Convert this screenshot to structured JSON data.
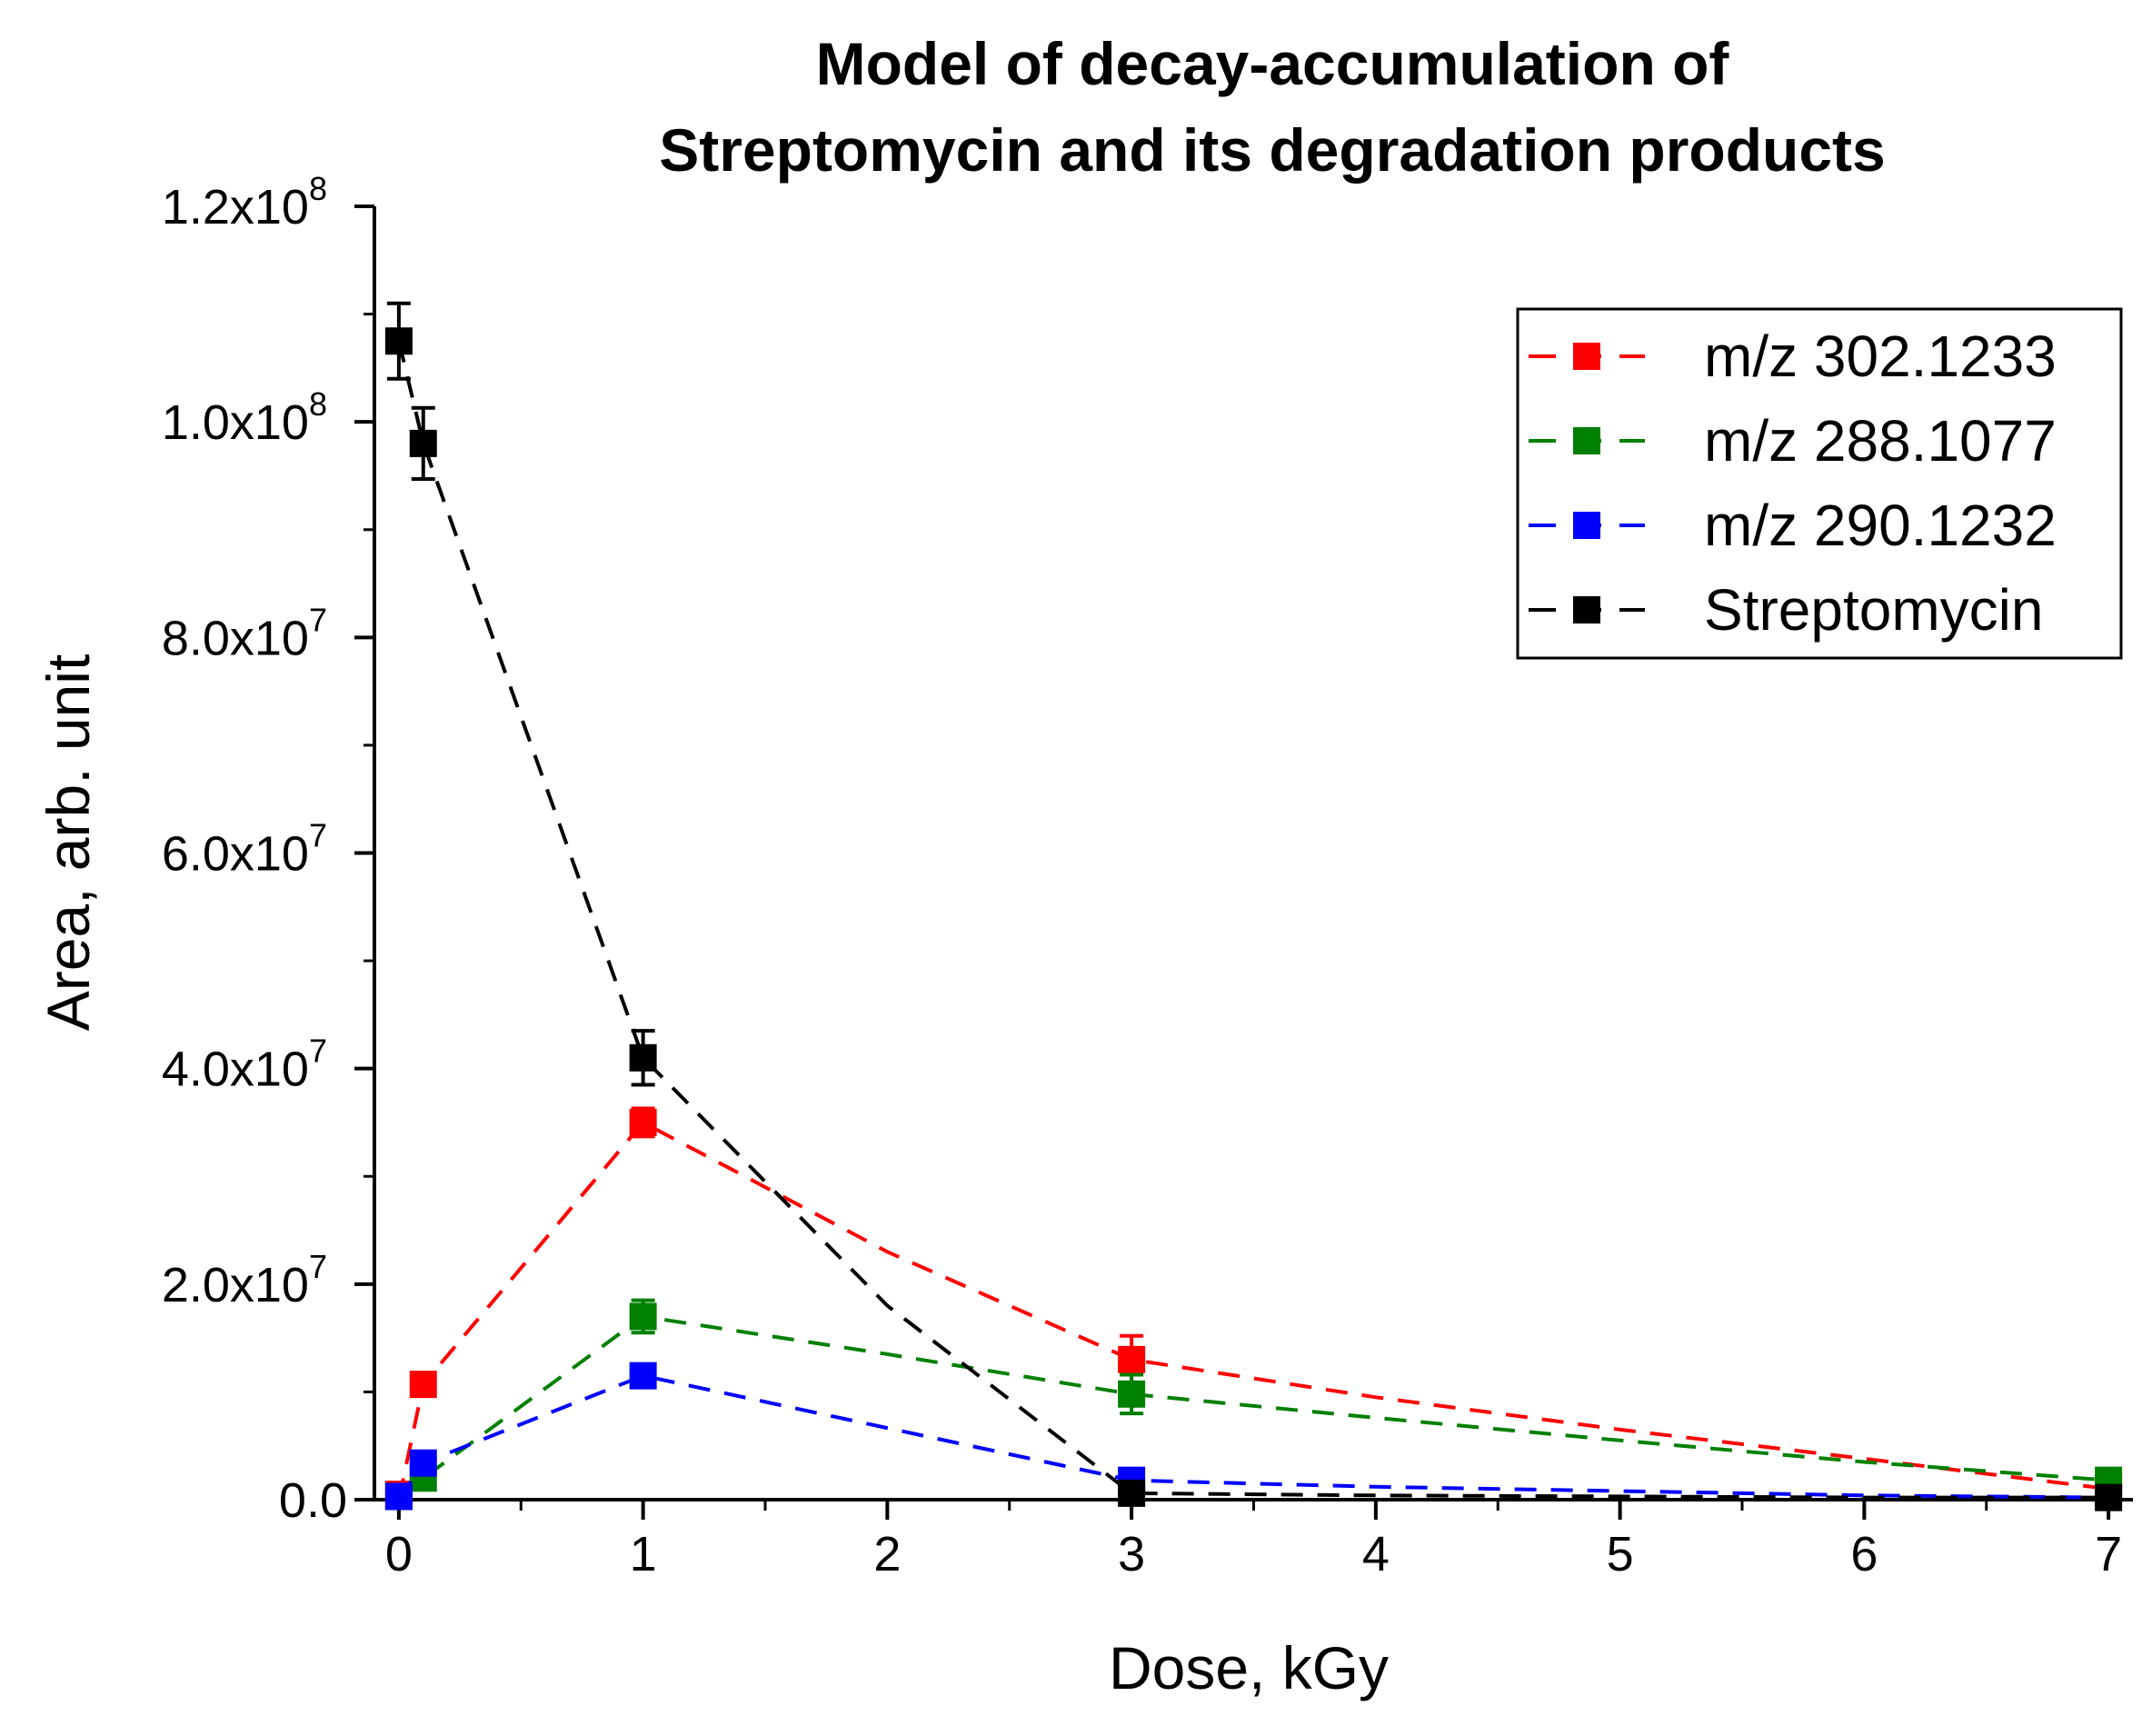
{
  "chart_data": {
    "type": "line",
    "title": [
      "Model of decay-accumulation of",
      "Streptomycin and its degradation products"
    ],
    "xlabel": "Dose, kGy",
    "ylabel": "Area, arb. unit",
    "xlim": [
      -0.1,
      7.1
    ],
    "ylim": [
      0,
      120000000
    ],
    "x_ticks": [
      {
        "value": 0,
        "label": "0"
      },
      {
        "value": 1,
        "label": "1"
      },
      {
        "value": 2,
        "label": "2"
      },
      {
        "value": 3,
        "label": "3"
      },
      {
        "value": 4,
        "label": "4"
      },
      {
        "value": 5,
        "label": "5"
      },
      {
        "value": 6,
        "label": "6"
      },
      {
        "value": 7,
        "label": "7"
      }
    ],
    "y_ticks": [
      {
        "value": 0,
        "mantissa": "0.0",
        "exp": ""
      },
      {
        "value": 20000000,
        "mantissa": "2.0x10",
        "exp": "7"
      },
      {
        "value": 40000000,
        "mantissa": "4.0x10",
        "exp": "7"
      },
      {
        "value": 60000000,
        "mantissa": "6.0x10",
        "exp": "7"
      },
      {
        "value": 80000000,
        "mantissa": "8.0x10",
        "exp": "7"
      },
      {
        "value": 100000000,
        "mantissa": "1.0x10",
        "exp": "8"
      },
      {
        "value": 120000000,
        "mantissa": "1.2x10",
        "exp": "8"
      }
    ],
    "grid": false,
    "legend_position": "top-right",
    "series": [
      {
        "name": "m/z 302.1233",
        "color": "#ff0000",
        "points": [
          {
            "x": 0,
            "y": 500000,
            "err": 300000
          },
          {
            "x": 0.1,
            "y": 10700000,
            "err": 800000
          },
          {
            "x": 1,
            "y": 35000000,
            "err": 1300000
          },
          {
            "x": 3,
            "y": 13000000,
            "err": 2200000
          },
          {
            "x": 7,
            "y": 1000000,
            "err": 300000
          }
        ],
        "curve": [
          {
            "x": 0,
            "y": 0
          },
          {
            "x": 0.1,
            "y": 10700000
          },
          {
            "x": 1,
            "y": 35000000
          },
          {
            "x": 2,
            "y": 23000000
          },
          {
            "x": 3,
            "y": 13000000
          },
          {
            "x": 4,
            "y": 9500000
          },
          {
            "x": 5,
            "y": 6500000
          },
          {
            "x": 6,
            "y": 3800000
          },
          {
            "x": 7,
            "y": 1000000
          }
        ]
      },
      {
        "name": "m/z 288.1077",
        "color": "#008000",
        "points": [
          {
            "x": 0,
            "y": 300000,
            "err": 200000
          },
          {
            "x": 0.1,
            "y": 2000000,
            "err": 600000
          },
          {
            "x": 1,
            "y": 17000000,
            "err": 1500000
          },
          {
            "x": 3,
            "y": 9800000,
            "err": 1800000
          },
          {
            "x": 7,
            "y": 1800000,
            "err": 300000
          }
        ],
        "curve": [
          {
            "x": 0,
            "y": 0
          },
          {
            "x": 0.1,
            "y": 2000000
          },
          {
            "x": 1,
            "y": 17000000
          },
          {
            "x": 2,
            "y": 13500000
          },
          {
            "x": 3,
            "y": 9800000
          },
          {
            "x": 4,
            "y": 7600000
          },
          {
            "x": 5,
            "y": 5500000
          },
          {
            "x": 6,
            "y": 3500000
          },
          {
            "x": 7,
            "y": 1800000
          }
        ]
      },
      {
        "name": "m/z 290.1232",
        "color": "#0000ff",
        "points": [
          {
            "x": 0,
            "y": 300000,
            "err": 200000
          },
          {
            "x": 0.1,
            "y": 3400000,
            "err": 800000
          },
          {
            "x": 1,
            "y": 11500000,
            "err": 1000000
          },
          {
            "x": 3,
            "y": 1800000,
            "err": 400000
          }
        ],
        "curve": [
          {
            "x": 0,
            "y": 0
          },
          {
            "x": 0.1,
            "y": 3400000
          },
          {
            "x": 1,
            "y": 11500000
          },
          {
            "x": 3,
            "y": 1800000
          },
          {
            "x": 4,
            "y": 1200000
          },
          {
            "x": 5,
            "y": 800000
          },
          {
            "x": 6,
            "y": 400000
          },
          {
            "x": 7,
            "y": 200000
          }
        ]
      },
      {
        "name": "Streptomycin",
        "color": "#000000",
        "points": [
          {
            "x": 0,
            "y": 107500000,
            "err": 3500000
          },
          {
            "x": 0.1,
            "y": 98000000,
            "err": 3300000
          },
          {
            "x": 1,
            "y": 41000000,
            "err": 2500000
          },
          {
            "x": 3,
            "y": 600000,
            "err": 200000
          },
          {
            "x": 7,
            "y": 200000,
            "err": 100000
          }
        ],
        "curve": [
          {
            "x": 0,
            "y": 107500000
          },
          {
            "x": 0.1,
            "y": 98000000
          },
          {
            "x": 1,
            "y": 41000000
          },
          {
            "x": 2,
            "y": 18000000
          },
          {
            "x": 3,
            "y": 600000
          },
          {
            "x": 4,
            "y": 400000
          },
          {
            "x": 5,
            "y": 300000
          },
          {
            "x": 6,
            "y": 200000
          },
          {
            "x": 7,
            "y": 200000
          }
        ]
      }
    ]
  }
}
